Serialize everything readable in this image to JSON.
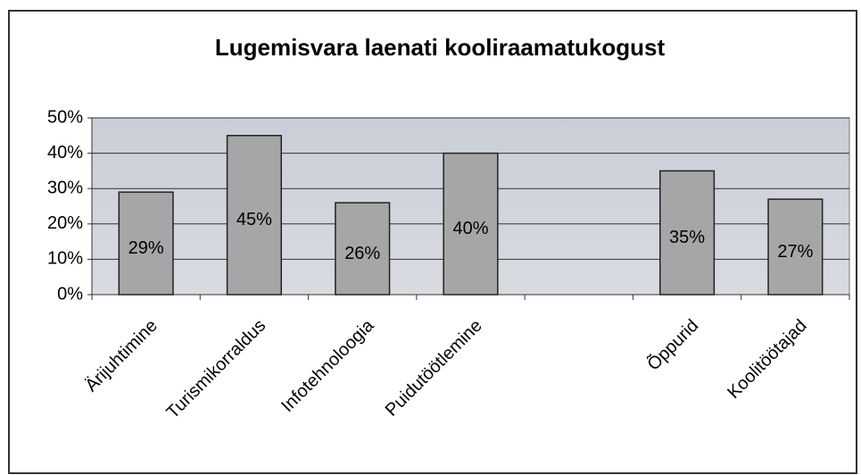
{
  "chart_data": {
    "type": "bar",
    "title": "Lugemisvara laenati kooliraamatukogust",
    "categories": [
      "Ärijuhtimine",
      "Turismikorraldus",
      "Infotehnoloogia",
      "Puidutöötlemine",
      null,
      "Õppurid",
      "Koolitöötajad"
    ],
    "values": [
      29,
      45,
      26,
      40,
      null,
      35,
      27
    ],
    "value_labels": [
      "29%",
      "45%",
      "26%",
      "40%",
      null,
      "35%",
      "27%"
    ],
    "color": "#a6a6a6",
    "ylim": [
      0,
      50
    ],
    "yticks": [
      {
        "value": 0,
        "label": "0%"
      },
      {
        "value": 10,
        "label": "10%"
      },
      {
        "value": 20,
        "label": "20%"
      },
      {
        "value": 30,
        "label": "30%"
      },
      {
        "value": 40,
        "label": "40%"
      },
      {
        "value": 50,
        "label": "50%"
      }
    ],
    "grid": true
  }
}
